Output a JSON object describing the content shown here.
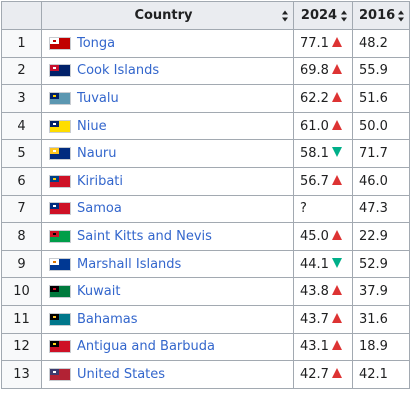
{
  "table": {
    "headers": {
      "rank": "",
      "country": "Country",
      "y2024": "2024",
      "y2016": "2016"
    },
    "rows": [
      {
        "rank": "1",
        "country": "Tonga",
        "flag": {
          "bg": "#c10000",
          "canton": "#ffffff",
          "mark": "#c10000",
          "name": "tonga-flag"
        },
        "v2024": "77.1",
        "trend": "up",
        "v2016": "48.2"
      },
      {
        "rank": "2",
        "country": "Cook Islands",
        "flag": {
          "bg": "#012169",
          "canton": "#c8102e",
          "mark": "#ffffff",
          "name": "cook-islands-flag"
        },
        "v2024": "69.8",
        "trend": "up",
        "v2016": "55.9"
      },
      {
        "rank": "3",
        "country": "Tuvalu",
        "flag": {
          "bg": "#5b97b1",
          "canton": "#012169",
          "mark": "#ffd100",
          "name": "tuvalu-flag"
        },
        "v2024": "62.2",
        "trend": "up",
        "v2016": "51.6"
      },
      {
        "rank": "4",
        "country": "Niue",
        "flag": {
          "bg": "#fedd00",
          "canton": "#012169",
          "mark": "#ffffff",
          "name": "niue-flag"
        },
        "v2024": "61.0",
        "trend": "up",
        "v2016": "50.0"
      },
      {
        "rank": "5",
        "country": "Nauru",
        "flag": {
          "bg": "#002b7f",
          "canton": "#ffc61e",
          "mark": "#ffffff",
          "name": "nauru-flag"
        },
        "v2024": "58.1",
        "trend": "down",
        "v2016": "71.7"
      },
      {
        "rank": "6",
        "country": "Kiribati",
        "flag": {
          "bg": "#ce1126",
          "canton": "#003f87",
          "mark": "#fcd116",
          "name": "kiribati-flag"
        },
        "v2024": "56.7",
        "trend": "up",
        "v2016": "46.0"
      },
      {
        "rank": "7",
        "country": "Samoa",
        "flag": {
          "bg": "#ce1126",
          "canton": "#002b7f",
          "mark": "#ffffff",
          "name": "samoa-flag"
        },
        "v2024": "?",
        "trend": "none",
        "v2016": "47.3"
      },
      {
        "rank": "8",
        "country": "Saint Kitts and Nevis",
        "flag": {
          "bg": "#009e49",
          "canton": "#ce1126",
          "mark": "#000000",
          "name": "saint-kitts-and-nevis-flag"
        },
        "v2024": "45.0",
        "trend": "up",
        "v2016": "22.9"
      },
      {
        "rank": "9",
        "country": "Marshall Islands",
        "flag": {
          "bg": "#003893",
          "canton": "#ffffff",
          "mark": "#dd7500",
          "name": "marshall-islands-flag"
        },
        "v2024": "44.1",
        "trend": "down",
        "v2016": "52.9"
      },
      {
        "rank": "10",
        "country": "Kuwait",
        "flag": {
          "bg": "#007a3d",
          "canton": "#000000",
          "mark": "#ce1126",
          "name": "kuwait-flag"
        },
        "v2024": "43.8",
        "trend": "up",
        "v2016": "37.9"
      },
      {
        "rank": "11",
        "country": "Bahamas",
        "flag": {
          "bg": "#00778b",
          "canton": "#000000",
          "mark": "#ffc72c",
          "name": "bahamas-flag"
        },
        "v2024": "43.7",
        "trend": "up",
        "v2016": "31.6"
      },
      {
        "rank": "12",
        "country": "Antigua and Barbuda",
        "flag": {
          "bg": "#ce1126",
          "canton": "#000000",
          "mark": "#fcd116",
          "name": "antigua-and-barbuda-flag"
        },
        "v2024": "43.1",
        "trend": "up",
        "v2016": "18.9"
      },
      {
        "rank": "13",
        "country": "United States",
        "flag": {
          "bg": "#b22234",
          "canton": "#3c3b6e",
          "mark": "#ffffff",
          "name": "united-states-flag"
        },
        "v2024": "42.7",
        "trend": "up",
        "v2016": "42.1"
      }
    ]
  },
  "colors": {
    "header_bg": "#eaecf0",
    "border": "#a2a9b1",
    "link": "#3366cc",
    "up_arrow": "#dd3333",
    "down_arrow": "#00af89"
  }
}
